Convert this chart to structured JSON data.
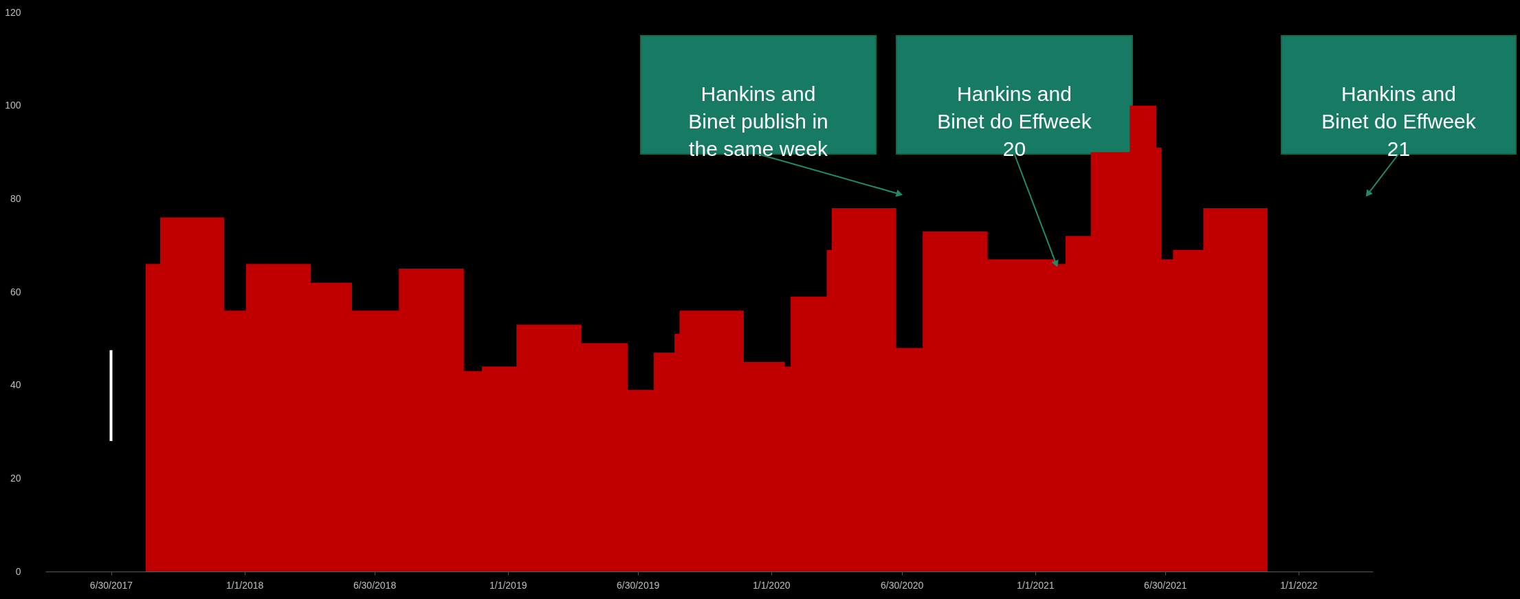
{
  "chart_data": {
    "type": "area",
    "x": [
      "2017-08-17",
      "2017-09-06",
      "2017-12-04",
      "2018-01-03",
      "2018-04-03",
      "2018-05-30",
      "2018-08-03",
      "2018-11-01",
      "2018-11-26",
      "2019-01-13",
      "2019-04-13",
      "2019-06-16",
      "2019-07-22",
      "2019-08-20",
      "2019-08-27",
      "2019-11-24",
      "2020-01-20",
      "2020-01-28",
      "2020-03-18",
      "2020-03-25",
      "2020-06-22",
      "2020-07-29",
      "2020-10-27",
      "2021-01-27",
      "2021-02-12",
      "2021-03-19",
      "2021-05-12",
      "2021-06-18",
      "2021-06-25",
      "2021-07-11",
      "2021-08-22",
      "2021-11-19"
    ],
    "series": [
      {
        "color": "#c00000",
        "values": [
          66,
          76,
          56,
          66,
          62,
          56,
          65,
          43,
          44,
          53,
          49,
          39,
          47,
          51,
          56,
          45,
          44,
          59,
          69,
          78,
          48,
          73,
          67,
          66,
          72,
          90,
          100,
          91,
          67,
          69,
          78,
          78
        ]
      },
      {
        "type": "line",
        "color": "#ffffff",
        "x": [
          "2017-06-30",
          "2017-06-30"
        ],
        "values": [
          28,
          47.5
        ]
      }
    ],
    "xlim": [
      "2017-03-31",
      "2022-04-14"
    ],
    "xticks": [
      {
        "value": "2017-06-30",
        "label": "6/30/2017"
      },
      {
        "value": "2018-01-01",
        "label": "1/1/2018"
      },
      {
        "value": "2018-06-30",
        "label": "6/30/2018"
      },
      {
        "value": "2019-01-01",
        "label": "1/1/2019"
      },
      {
        "value": "2019-06-30",
        "label": "6/30/2019"
      },
      {
        "value": "2020-01-01",
        "label": "1/1/2020"
      },
      {
        "value": "2020-06-30",
        "label": "6/30/2020"
      },
      {
        "value": "2021-01-01",
        "label": "1/1/2021"
      },
      {
        "value": "2021-06-30",
        "label": "6/30/2021"
      },
      {
        "value": "2022-01-01",
        "label": "1/1/2022"
      }
    ],
    "ylim": [
      0,
      120
    ],
    "yticks": [
      0,
      20,
      40,
      60,
      80,
      100,
      120
    ],
    "annotations": [
      {
        "text": "Hankins and Binet publish in the same week",
        "x": "2020-06-27",
        "y": 81
      },
      {
        "text": "Hankins and Binet do Effweek 20",
        "x": "2021-01-30",
        "y": 66
      },
      {
        "text": "Hankins and Binet do Effweek 21",
        "x": "2022-04-07",
        "y": 81
      }
    ]
  }
}
